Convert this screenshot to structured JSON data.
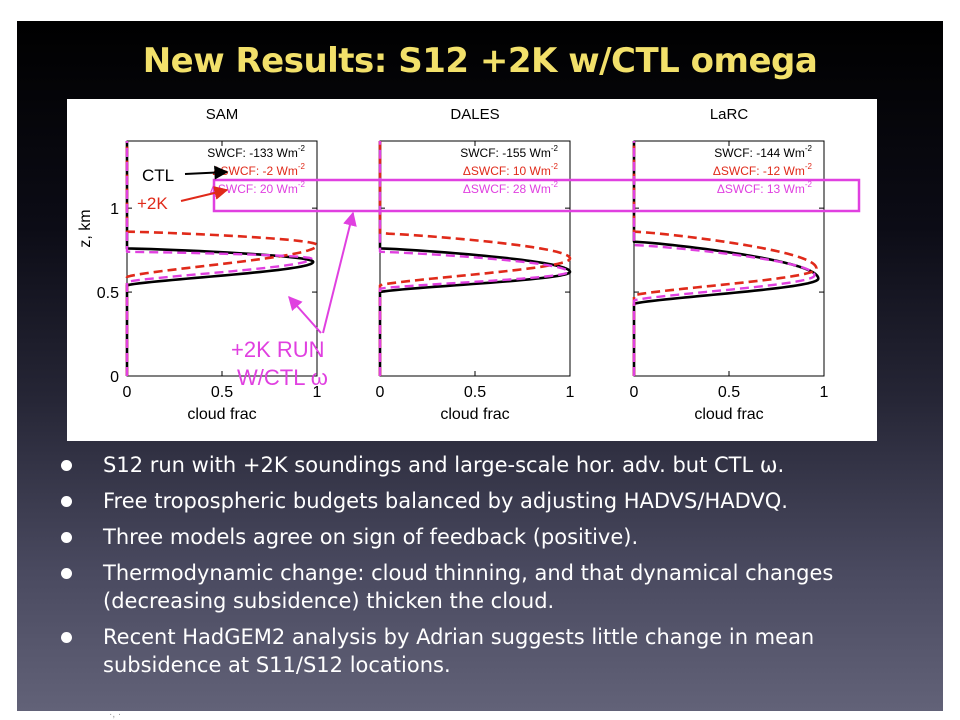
{
  "slide": {
    "title": "New Results: S12 +2K w/CTL omega",
    "colors": {
      "title": "#f2e06a",
      "bullet_text": "#ffffff",
      "bullet_dot": "#ffffff",
      "background_top": "#000000",
      "background_bottom": "#626278"
    },
    "bullets": [
      "S12 run with +2K soundings and large-scale hor. adv. but CTL ω.",
      "Free tropospheric budgets balanced by adjusting HADVS/HADVQ.",
      "Three models agree on sign of feedback (positive).",
      "Thermodynamic change: cloud thinning, and that dynamical changes (decreasing subsidence) thicken the cloud.",
      "Recent HadGEM2 analysis by Adrian suggests little change in mean subsidence at S11/S12 locations."
    ],
    "footer_fragment": "·, ·"
  },
  "chart_data": {
    "type": "line",
    "ylabel": "z, km",
    "xlabel": "cloud frac",
    "xlim": [
      0,
      1
    ],
    "ylim": [
      0,
      1.4
    ],
    "xticks": [
      "0",
      "0.5",
      "1"
    ],
    "yticks": [
      "0",
      "0.5",
      "1"
    ],
    "grid": false,
    "line_colors": {
      "ctl": "#000000",
      "plus2k": "#e02a1a",
      "plus2k_ctl_omega": "#e040e0"
    },
    "annotation_colors": {
      "ctl_label": "#000000",
      "plus2k_label": "#e02a1a",
      "run_label": "#e040e0",
      "highlight_box": "#e040e0"
    },
    "annotations": {
      "ctl_label": "CTL",
      "plus2k_label": "+2K",
      "run_label_line1": "+2K RUN",
      "run_label_line2": "W/CTL ω"
    },
    "panels": [
      {
        "title": "SAM",
        "legend": {
          "line1": "SWCF: -133 Wm",
          "line2": "ΔSWCF: -2 Wm",
          "line3": "ΔSWCF: 20 Wm",
          "sup": "-2"
        },
        "series": [
          {
            "key": "ctl",
            "base": 0.54,
            "top": 0.76,
            "peak_z": 0.68,
            "peak": 0.98
          },
          {
            "key": "plus2k",
            "base": 0.59,
            "top": 0.86,
            "peak_z": 0.78,
            "peak": 1.0
          },
          {
            "key": "plus2k_ctl_omega",
            "base": 0.56,
            "top": 0.74,
            "peak_z": 0.7,
            "peak": 0.97
          }
        ]
      },
      {
        "title": "DALES",
        "legend": {
          "line1": "SWCF: -155 Wm",
          "line2": "ΔSWCF: 10 Wm",
          "line3": "ΔSWCF: 28 Wm",
          "sup": "-2"
        },
        "series": [
          {
            "key": "ctl",
            "base": 0.5,
            "top": 0.76,
            "peak_z": 0.62,
            "peak": 1.0
          },
          {
            "key": "plus2k",
            "base": 0.54,
            "top": 0.85,
            "peak_z": 0.7,
            "peak": 1.0
          },
          {
            "key": "plus2k_ctl_omega",
            "base": 0.52,
            "top": 0.74,
            "peak_z": 0.62,
            "peak": 0.99
          }
        ]
      },
      {
        "title": "LaRC",
        "legend": {
          "line1": "SWCF: -144 Wm",
          "line2": "ΔSWCF: -12 Wm",
          "line3": "ΔSWCF: 13 Wm",
          "sup": "-2"
        },
        "series": [
          {
            "key": "ctl",
            "base": 0.43,
            "top": 0.8,
            "peak_z": 0.58,
            "peak": 0.97
          },
          {
            "key": "plus2k",
            "base": 0.48,
            "top": 0.86,
            "peak_z": 0.64,
            "peak": 0.96
          },
          {
            "key": "plus2k_ctl_omega",
            "base": 0.45,
            "top": 0.78,
            "peak_z": 0.6,
            "peak": 0.95
          }
        ]
      }
    ]
  }
}
